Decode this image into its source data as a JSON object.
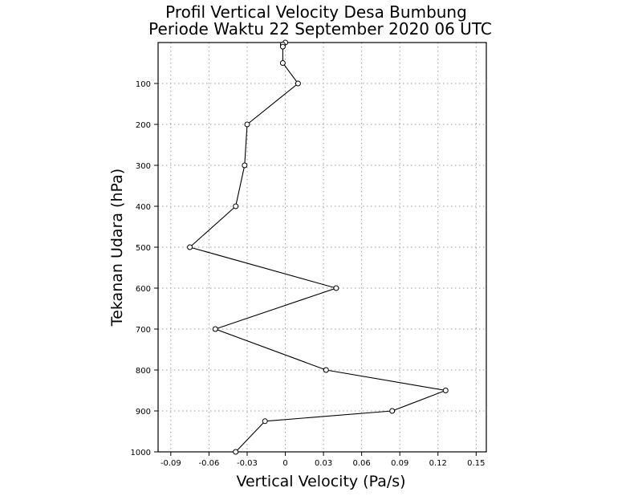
{
  "chart_data": {
    "type": "line",
    "title": [
      "Profil Vertical Velocity Desa Bumbung",
      "Periode Waktu 22 September 2020 06 UTC"
    ],
    "xlabel": "Vertical Velocity (Pa/s)",
    "ylabel": "Tekanan Udara (hPa)",
    "xlim": [
      -0.1,
      0.158
    ],
    "ylim": [
      1000,
      0
    ],
    "y_inverted": true,
    "grid": true,
    "x_ticks": [
      -0.09,
      -0.06,
      -0.03,
      0,
      0.03,
      0.06,
      0.09,
      0.12,
      0.15
    ],
    "x_tick_labels": [
      "-0.09",
      "-0.06",
      "-0.03",
      "0",
      "0.03",
      "0.06",
      "0.09",
      "0.12",
      "0.15"
    ],
    "y_ticks": [
      100,
      200,
      300,
      400,
      500,
      600,
      700,
      800,
      900,
      1000
    ],
    "y_tick_labels": [
      "100",
      "200",
      "300",
      "400",
      "500",
      "600",
      "700",
      "800",
      "900",
      "1000"
    ],
    "series": [
      {
        "points": [
          {
            "x": 0.0,
            "y": 0
          },
          {
            "x": -0.002,
            "y": 5
          },
          {
            "x": -0.002,
            "y": 10
          },
          {
            "x": -0.002,
            "y": 50
          },
          {
            "x": 0.01,
            "y": 100
          },
          {
            "x": -0.03,
            "y": 200
          },
          {
            "x": -0.032,
            "y": 300
          },
          {
            "x": -0.039,
            "y": 400
          },
          {
            "x": -0.075,
            "y": 500
          },
          {
            "x": 0.04,
            "y": 600
          },
          {
            "x": -0.055,
            "y": 700
          },
          {
            "x": 0.032,
            "y": 800
          },
          {
            "x": 0.126,
            "y": 850
          },
          {
            "x": 0.084,
            "y": 900
          },
          {
            "x": -0.016,
            "y": 925
          },
          {
            "x": -0.039,
            "y": 1000
          }
        ]
      }
    ]
  }
}
